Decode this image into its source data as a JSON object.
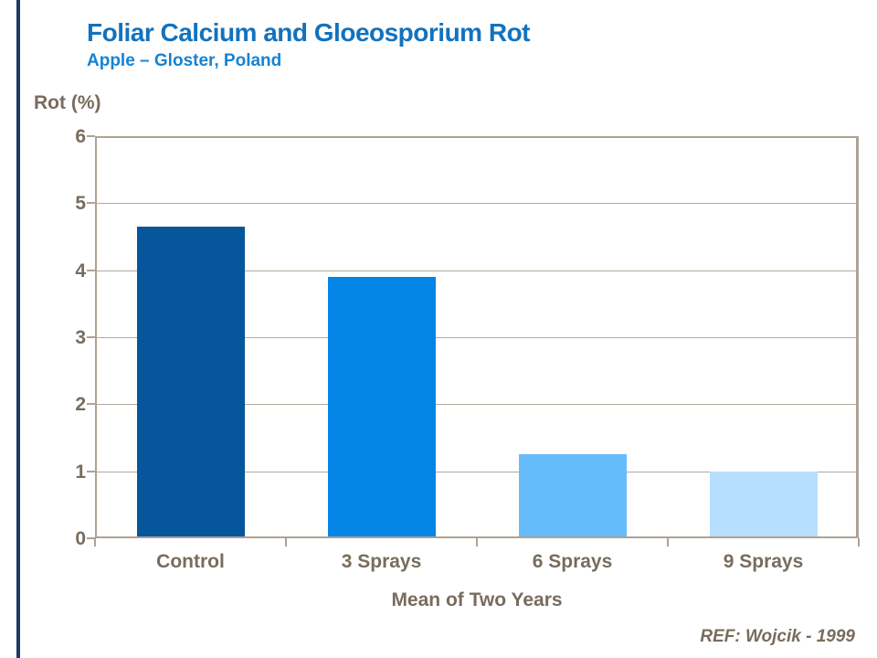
{
  "chart_data": {
    "type": "bar",
    "title": "Foliar Calcium and Gloeosporium Rot",
    "subtitle": "Apple – Gloster, Poland",
    "ylabel": "Rot (%)",
    "xlabel": "Mean of Two Years",
    "categories": [
      "Control",
      "3 Sprays",
      "6 Sprays",
      "9 Sprays"
    ],
    "values": [
      4.65,
      3.9,
      1.25,
      1.0
    ],
    "bar_colors": [
      "#05569B",
      "#0285E5",
      "#66BCFA",
      "#B7DEFC"
    ],
    "ylim": [
      0,
      6
    ],
    "yticks": [
      0,
      1,
      2,
      3,
      4,
      5,
      6
    ],
    "grid": "horizontal",
    "legend": "none"
  },
  "footer": {
    "reference": "REF: Wojcik - 1999"
  },
  "colors": {
    "title_text": "#1272BE",
    "subtitle_text": "#1583D3",
    "axis_text": "#786C5D",
    "axis_line": "#AEA294",
    "gridline": "#B3A89A",
    "accent_bar": "#1F3A64",
    "background": "#FFFFFF"
  }
}
